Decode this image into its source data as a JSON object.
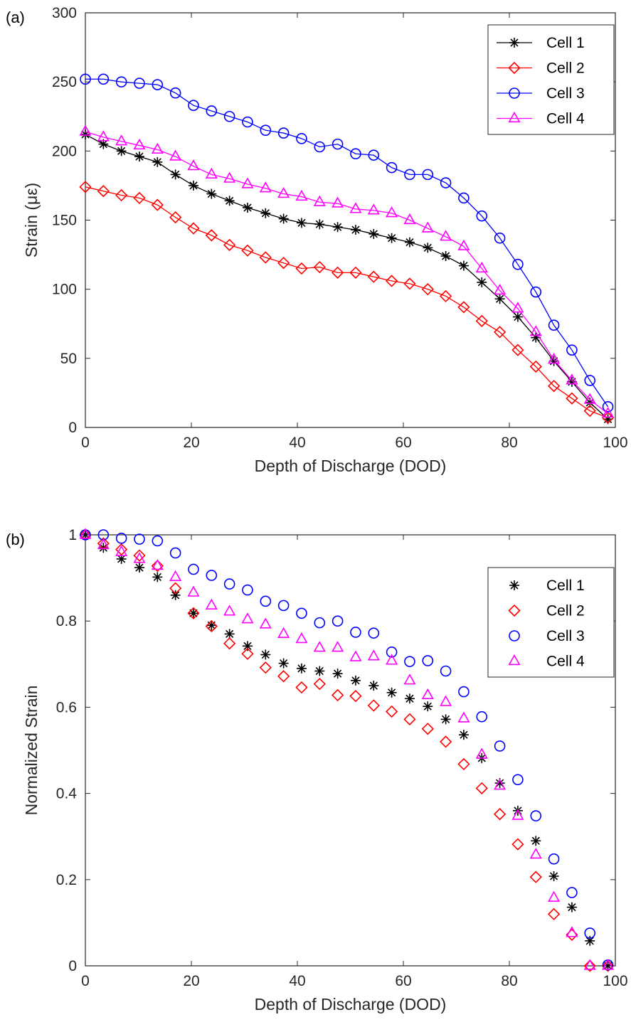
{
  "chart_data": [
    {
      "type": "line",
      "panel_label": "(a)",
      "title": "",
      "xlabel": "Depth of Discharge (DOD)",
      "ylabel": "Strain (με)",
      "xlim": [
        0,
        100
      ],
      "ylim": [
        0,
        300
      ],
      "xticks": [
        0,
        20,
        40,
        60,
        80,
        100
      ],
      "yticks": [
        0,
        50,
        100,
        150,
        200,
        250,
        300
      ],
      "grid": false,
      "legend": "top-right",
      "x": [
        0,
        3.4,
        6.8,
        10.2,
        13.6,
        17.0,
        20.4,
        23.8,
        27.2,
        30.6,
        34.0,
        37.4,
        40.8,
        44.2,
        47.6,
        51.0,
        54.4,
        57.8,
        61.2,
        64.6,
        68.0,
        71.4,
        74.8,
        78.2,
        81.6,
        85.0,
        88.4,
        91.8,
        95.2,
        98.6
      ],
      "series": [
        {
          "name": "Cell 1",
          "marker": "asterisk",
          "color": "#000000",
          "values": [
            212,
            205,
            200,
            196,
            192,
            183,
            175,
            169,
            164,
            159,
            155,
            151,
            148,
            147,
            145,
            143,
            140,
            137,
            134,
            130,
            124,
            117,
            105,
            93,
            80,
            65,
            48,
            33,
            18,
            6
          ]
        },
        {
          "name": "Cell 2",
          "marker": "diamond",
          "color": "#ff0000",
          "values": [
            174,
            171,
            168,
            166,
            161,
            152,
            144,
            139,
            132,
            128,
            123,
            119,
            115,
            116,
            112,
            112,
            109,
            106,
            104,
            100,
            95,
            87,
            77,
            69,
            56,
            44,
            30,
            21,
            12,
            7
          ]
        },
        {
          "name": "Cell 3",
          "marker": "circle",
          "color": "#0000ff",
          "values": [
            252,
            252,
            250,
            249,
            248,
            242,
            233,
            229,
            225,
            221,
            215,
            213,
            209,
            203,
            205,
            198,
            197,
            188,
            183,
            183,
            177,
            166,
            153,
            137,
            118,
            98,
            74,
            56,
            34,
            15
          ]
        },
        {
          "name": "Cell 4",
          "marker": "triangle",
          "color": "#ff00ff",
          "values": [
            214,
            210,
            207,
            204,
            201,
            196,
            189,
            183,
            180,
            176,
            173,
            169,
            167,
            163,
            162,
            158,
            157,
            155,
            150,
            144,
            138,
            131,
            115,
            99,
            86,
            69,
            49,
            34,
            20,
            10
          ]
        }
      ]
    },
    {
      "type": "scatter",
      "panel_label": "(b)",
      "title": "",
      "xlabel": "Depth of Discharge (DOD)",
      "ylabel": "Normalized Strain",
      "xlim": [
        0,
        100
      ],
      "ylim": [
        0,
        1
      ],
      "xticks": [
        0,
        20,
        40,
        60,
        80,
        100
      ],
      "yticks": [
        0,
        0.2,
        0.4,
        0.6,
        0.8,
        1
      ],
      "ytick_labels": [
        "0",
        "0.2",
        "0.4",
        "0.6",
        "0.8",
        "1"
      ],
      "grid": false,
      "legend": "top-right",
      "series": [
        {
          "name": "Cell 1",
          "marker": "asterisk",
          "color": "#000000",
          "x": [
            0,
            3.4,
            6.8,
            10.2,
            13.6,
            17.0,
            20.4,
            23.8,
            27.2,
            30.6,
            34.0,
            37.4,
            40.8,
            44.2,
            47.6,
            51.0,
            54.4,
            57.8,
            61.2,
            64.6,
            68.0,
            71.4,
            74.8,
            78.2,
            81.6,
            85.0,
            88.4,
            91.8,
            95.2,
            98.6
          ],
          "values": [
            1.0,
            0.97,
            0.944,
            0.924,
            0.902,
            0.86,
            0.818,
            0.79,
            0.77,
            0.742,
            0.722,
            0.702,
            0.69,
            0.684,
            0.678,
            0.662,
            0.65,
            0.634,
            0.62,
            0.602,
            0.572,
            0.536,
            0.482,
            0.424,
            0.36,
            0.29,
            0.208,
            0.136,
            0.058,
            0.0
          ]
        },
        {
          "name": "Cell 2",
          "marker": "diamond",
          "color": "#ff0000",
          "x": [
            0,
            3.4,
            6.8,
            10.2,
            13.6,
            17.0,
            20.4,
            23.8,
            27.2,
            30.6,
            34.0,
            37.4,
            40.8,
            44.2,
            47.6,
            51.0,
            54.4,
            57.8,
            61.2,
            64.6,
            68.0,
            71.4,
            74.8,
            78.2,
            81.6,
            85.0,
            88.4,
            91.8,
            95.2,
            98.6
          ],
          "values": [
            1.0,
            0.98,
            0.966,
            0.952,
            0.928,
            0.876,
            0.818,
            0.788,
            0.748,
            0.724,
            0.692,
            0.672,
            0.646,
            0.654,
            0.628,
            0.626,
            0.604,
            0.59,
            0.572,
            0.55,
            0.52,
            0.468,
            0.412,
            0.352,
            0.282,
            0.206,
            0.12,
            0.072,
            0.0,
            0.0
          ]
        },
        {
          "name": "Cell 3",
          "marker": "circle",
          "color": "#0000ff",
          "x": [
            0,
            3.4,
            6.8,
            10.2,
            13.6,
            17.0,
            20.4,
            23.8,
            27.2,
            30.6,
            34.0,
            37.4,
            40.8,
            44.2,
            47.6,
            51.0,
            54.4,
            57.8,
            61.2,
            64.6,
            68.0,
            71.4,
            74.8,
            78.2,
            81.6,
            85.0,
            88.4,
            91.8,
            95.2,
            98.6
          ],
          "values": [
            1.0,
            1.0,
            0.992,
            0.99,
            0.986,
            0.958,
            0.92,
            0.906,
            0.886,
            0.872,
            0.846,
            0.836,
            0.818,
            0.796,
            0.8,
            0.774,
            0.772,
            0.728,
            0.706,
            0.708,
            0.684,
            0.636,
            0.578,
            0.51,
            0.432,
            0.348,
            0.248,
            0.17,
            0.076,
            0.002
          ]
        },
        {
          "name": "Cell 4",
          "marker": "triangle",
          "color": "#ff00ff",
          "x": [
            0,
            3.4,
            6.8,
            10.2,
            13.6,
            17.0,
            20.4,
            23.8,
            27.2,
            30.6,
            34.0,
            37.4,
            40.8,
            44.2,
            47.6,
            51.0,
            54.4,
            57.8,
            61.2,
            64.6,
            68.0,
            71.4,
            74.8,
            78.2,
            81.6,
            85.0,
            88.4,
            91.8,
            95.2,
            98.6
          ],
          "values": [
            1.0,
            0.976,
            0.96,
            0.944,
            0.928,
            0.902,
            0.866,
            0.836,
            0.822,
            0.804,
            0.792,
            0.77,
            0.758,
            0.738,
            0.738,
            0.716,
            0.718,
            0.708,
            0.662,
            0.628,
            0.612,
            0.574,
            0.49,
            0.418,
            0.348,
            0.258,
            0.158,
            0.076,
            0.0,
            0.0
          ]
        }
      ]
    }
  ]
}
